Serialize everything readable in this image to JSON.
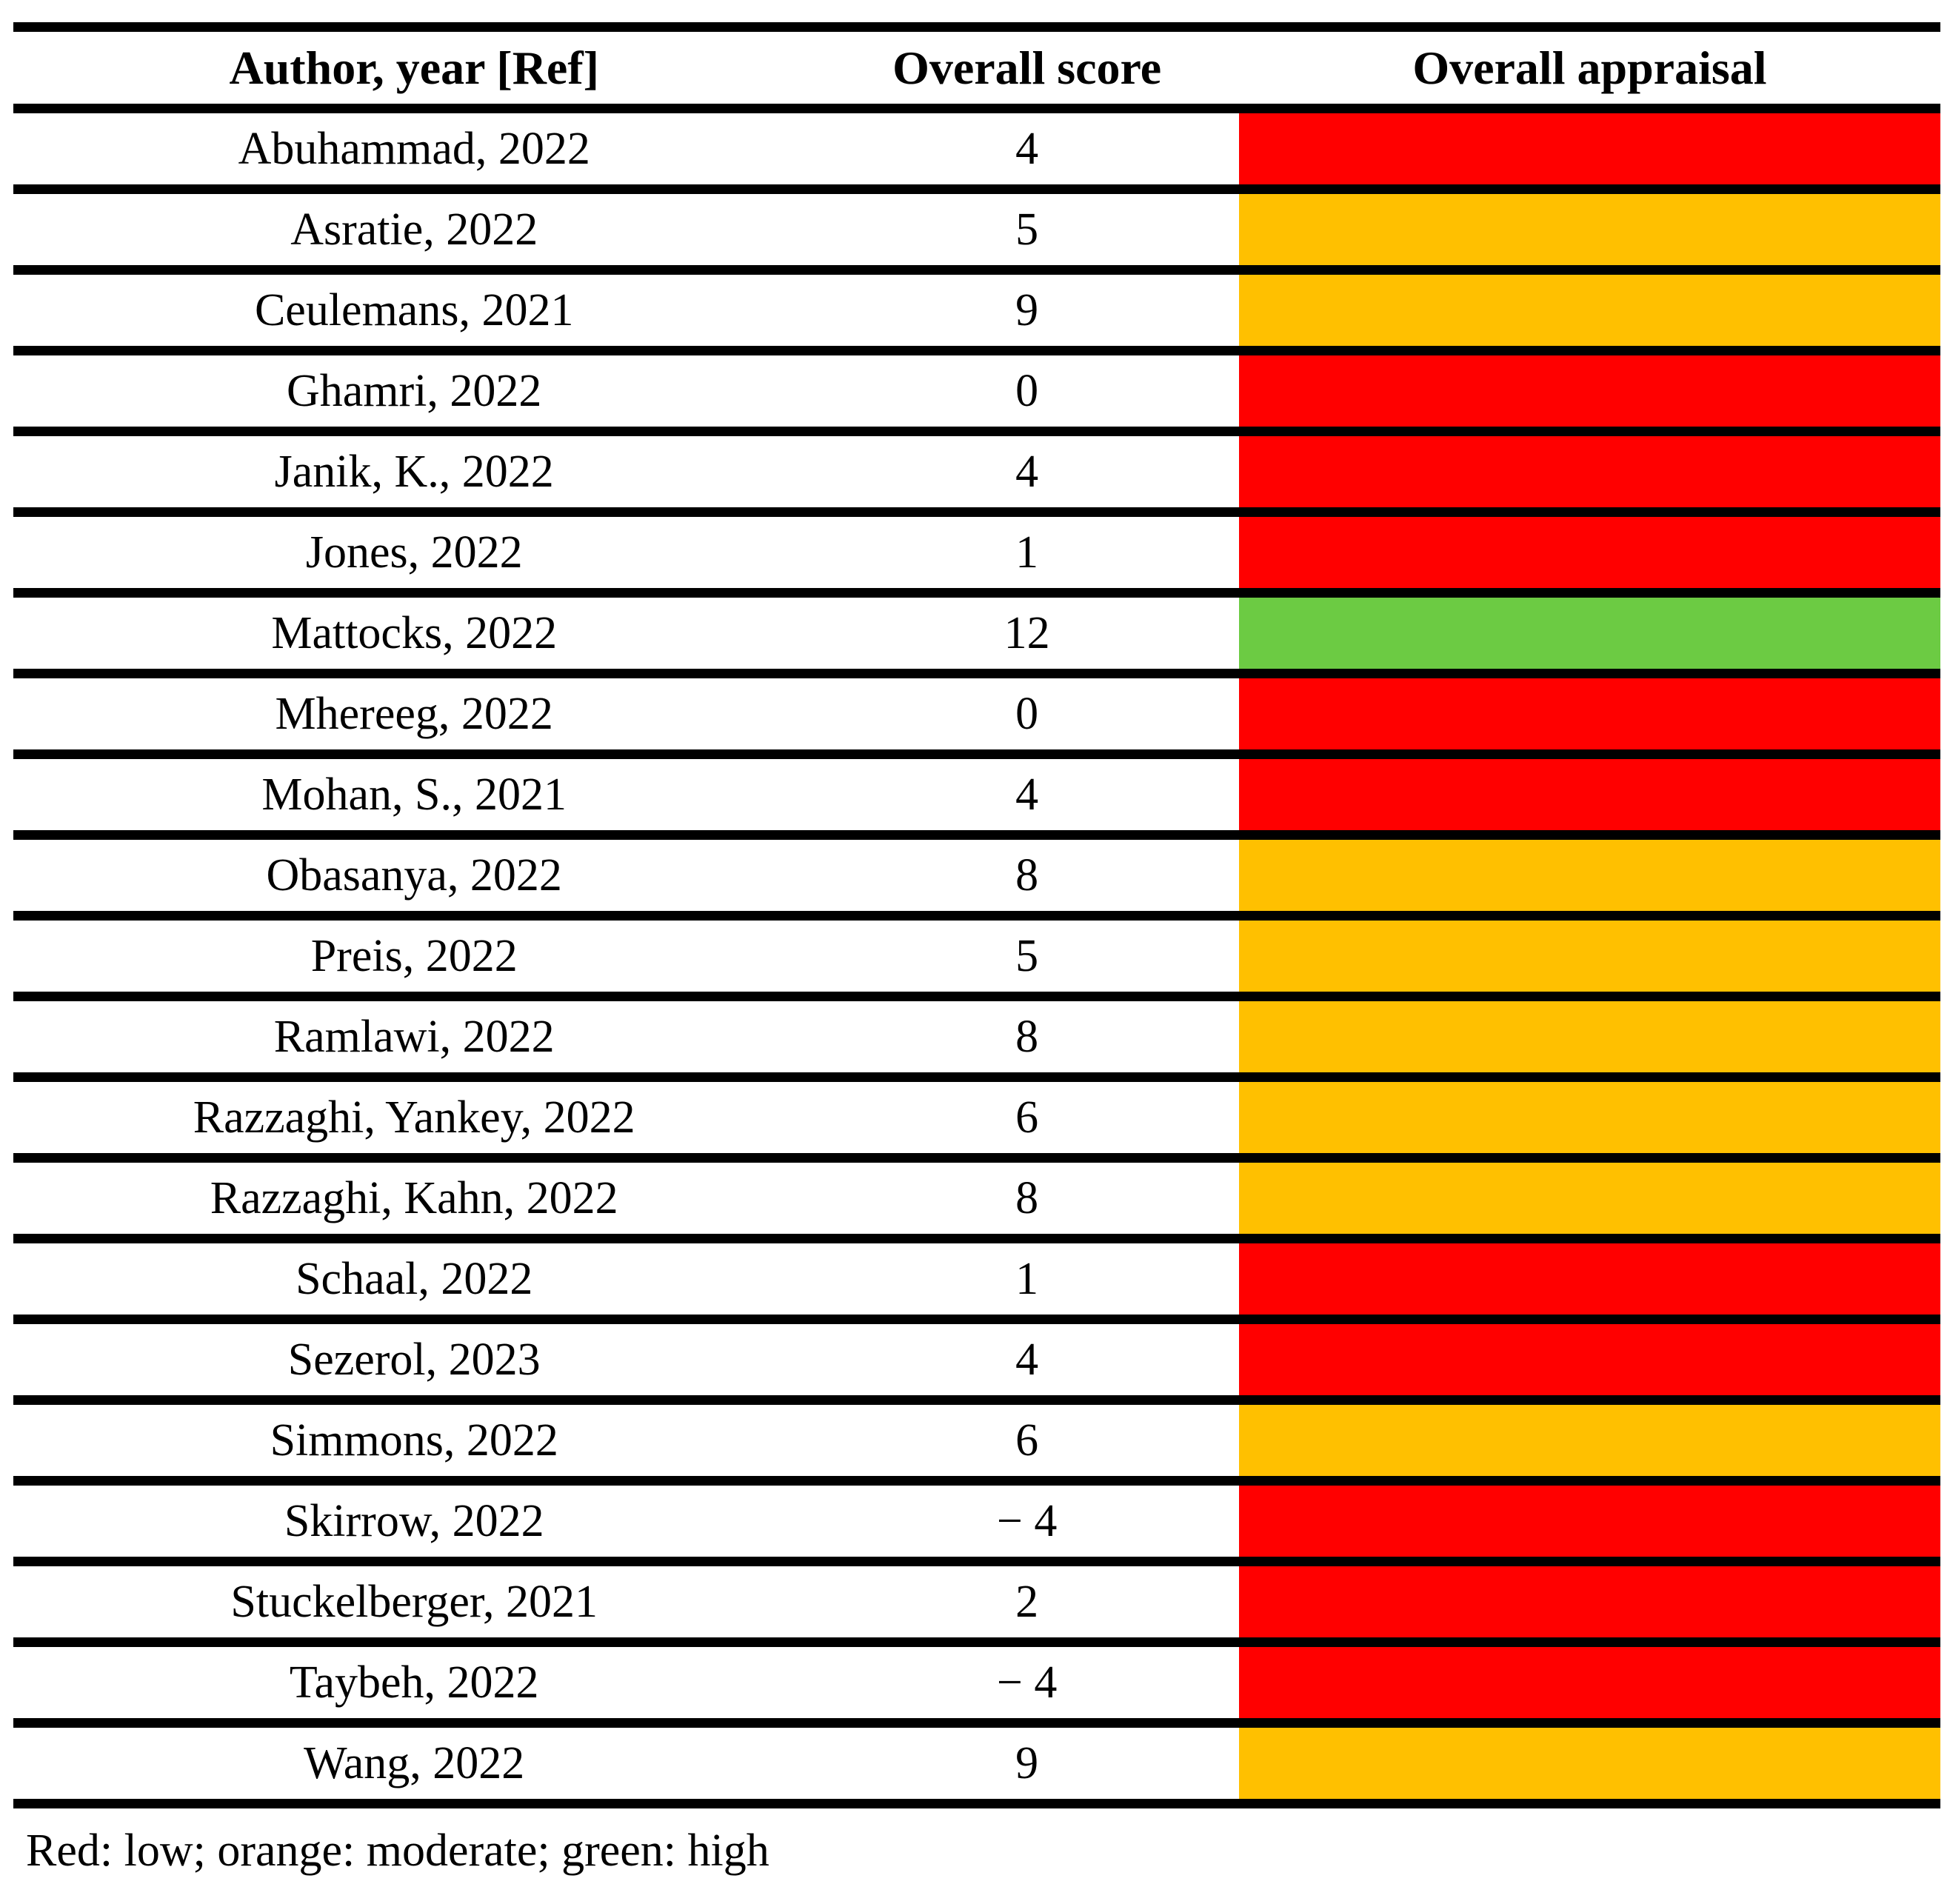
{
  "table": {
    "headers": {
      "author": "Author, year [Ref]",
      "score": "Overall score",
      "appraisal": "Overall appraisal"
    },
    "rows": [
      {
        "author": "Abuhammad, 2022",
        "score": "4",
        "appraisal": "low",
        "color": "red"
      },
      {
        "author": "Asratie, 2022",
        "score": "5",
        "appraisal": "moderate",
        "color": "orange"
      },
      {
        "author": "Ceulemans, 2021",
        "score": "9",
        "appraisal": "moderate",
        "color": "orange"
      },
      {
        "author": "Ghamri, 2022",
        "score": "0",
        "appraisal": "low",
        "color": "red"
      },
      {
        "author": "Janik, K., 2022",
        "score": "4",
        "appraisal": "low",
        "color": "red"
      },
      {
        "author": "Jones, 2022",
        "score": "1",
        "appraisal": "low",
        "color": "red"
      },
      {
        "author": "Mattocks, 2022",
        "score": "12",
        "appraisal": "high",
        "color": "green"
      },
      {
        "author": "Mhereeg, 2022",
        "score": "0",
        "appraisal": "low",
        "color": "red"
      },
      {
        "author": "Mohan, S., 2021",
        "score": "4",
        "appraisal": "low",
        "color": "red"
      },
      {
        "author": "Obasanya, 2022",
        "score": "8",
        "appraisal": "moderate",
        "color": "orange"
      },
      {
        "author": "Preis, 2022",
        "score": "5",
        "appraisal": "moderate",
        "color": "orange"
      },
      {
        "author": "Ramlawi, 2022",
        "score": "8",
        "appraisal": "moderate",
        "color": "orange"
      },
      {
        "author": "Razzaghi, Yankey, 2022",
        "score": "6",
        "appraisal": "moderate",
        "color": "orange"
      },
      {
        "author": "Razzaghi, Kahn, 2022",
        "score": "8",
        "appraisal": "moderate",
        "color": "orange"
      },
      {
        "author": "Schaal, 2022",
        "score": "1",
        "appraisal": "low",
        "color": "red"
      },
      {
        "author": "Sezerol, 2023",
        "score": "4",
        "appraisal": "low",
        "color": "red"
      },
      {
        "author": "Simmons, 2022",
        "score": "6",
        "appraisal": "moderate",
        "color": "orange"
      },
      {
        "author": "Skirrow, 2022",
        "score": "− 4",
        "appraisal": "low",
        "color": "red"
      },
      {
        "author": "Stuckelberger, 2021",
        "score": "2",
        "appraisal": "low",
        "color": "red"
      },
      {
        "author": "Taybeh, 2022",
        "score": "− 4",
        "appraisal": "low",
        "color": "red"
      },
      {
        "author": "Wang, 2022",
        "score": "9",
        "appraisal": "moderate",
        "color": "orange"
      }
    ]
  },
  "colors": {
    "red": "#FF0000",
    "orange": "#FFC000",
    "green": "#6CCB43"
  },
  "footer": {
    "note": "Red: low; orange: moderate; green: high"
  }
}
